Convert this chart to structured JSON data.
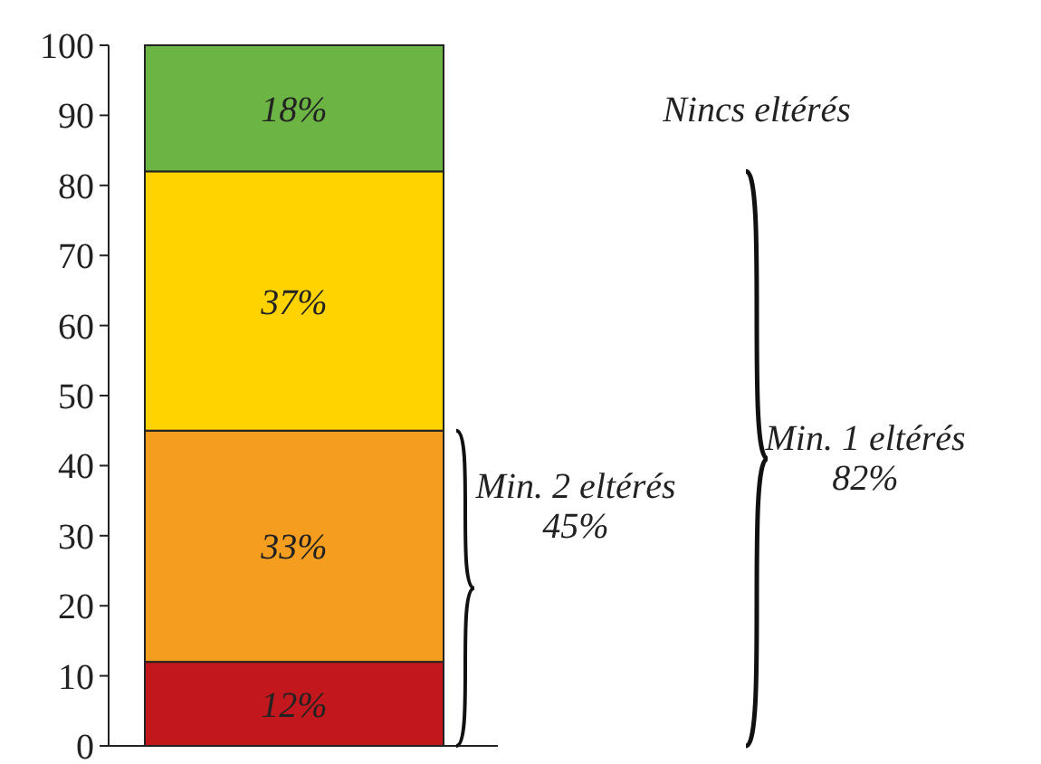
{
  "chart_data": {
    "type": "bar",
    "stacked": true,
    "categories": [
      null
    ],
    "series": [
      {
        "color": "#c1171d",
        "values": [
          12
        ],
        "value_labels": [
          "12%"
        ]
      },
      {
        "color": "#f49d1f",
        "values": [
          33
        ],
        "value_labels": [
          "33%"
        ]
      },
      {
        "color": "#fed300",
        "values": [
          37
        ],
        "value_labels": [
          "37%"
        ]
      },
      {
        "color": "#6cb444",
        "values": [
          18
        ],
        "value_labels": [
          "18%"
        ]
      }
    ],
    "ylim": [
      0,
      100
    ],
    "yticks": [
      0,
      10,
      20,
      30,
      40,
      50,
      60,
      70,
      80,
      90,
      100
    ],
    "grid": false,
    "annotations": [
      "Nincs eltérés",
      "Min. 1 eltérés\n82%",
      "Min. 2 eltérés\n45%"
    ]
  }
}
